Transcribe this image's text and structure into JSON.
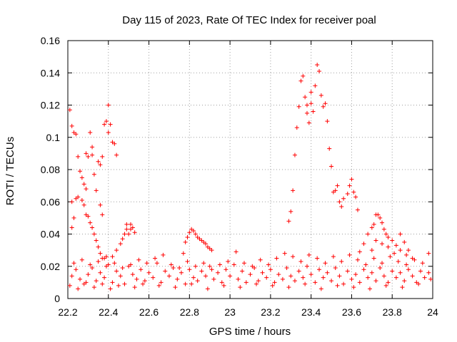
{
  "chart_data": {
    "type": "scatter",
    "title": "Day 115 of 2023, Rate Of TEC Index for receiver poal",
    "xlabel": "GPS time / hours",
    "ylabel": "ROTI / TECUs",
    "xlim": [
      22.2,
      24.0
    ],
    "ylim": [
      0,
      0.16
    ],
    "xticks": [
      "22.2",
      "22.4",
      "22.6",
      "22.8",
      "23",
      "23.2",
      "23.4",
      "23.6",
      "23.8",
      "24"
    ],
    "yticks": [
      "0",
      "0.02",
      "0.04",
      "0.06",
      "0.08",
      "0.1",
      "0.12",
      "0.14",
      "0.16"
    ],
    "grid": true,
    "marker": "+",
    "color": "#ff0000",
    "series": [
      {
        "name": "ROTI",
        "points": [
          [
            22.21,
            0.117
          ],
          [
            22.22,
            0.107
          ],
          [
            22.23,
            0.103
          ],
          [
            22.24,
            0.102
          ],
          [
            22.25,
            0.088
          ],
          [
            22.26,
            0.079
          ],
          [
            22.27,
            0.075
          ],
          [
            22.28,
            0.071
          ],
          [
            22.29,
            0.068
          ],
          [
            22.29,
            0.09
          ],
          [
            22.3,
            0.088
          ],
          [
            22.31,
            0.103
          ],
          [
            22.32,
            0.094
          ],
          [
            22.32,
            0.089
          ],
          [
            22.33,
            0.077
          ],
          [
            22.34,
            0.067
          ],
          [
            22.35,
            0.085
          ],
          [
            22.36,
            0.083
          ],
          [
            22.37,
            0.088
          ],
          [
            22.38,
            0.108
          ],
          [
            22.39,
            0.11
          ],
          [
            22.4,
            0.12
          ],
          [
            22.4,
            0.103
          ],
          [
            22.41,
            0.108
          ],
          [
            22.42,
            0.097
          ],
          [
            22.43,
            0.096
          ],
          [
            22.44,
            0.089
          ],
          [
            22.22,
            0.06
          ],
          [
            22.22,
            0.044
          ],
          [
            22.23,
            0.05
          ],
          [
            22.24,
            0.062
          ],
          [
            22.25,
            0.063
          ],
          [
            22.27,
            0.061
          ],
          [
            22.28,
            0.058
          ],
          [
            22.29,
            0.052
          ],
          [
            22.3,
            0.051
          ],
          [
            22.31,
            0.047
          ],
          [
            22.32,
            0.044
          ],
          [
            22.33,
            0.04
          ],
          [
            22.34,
            0.036
          ],
          [
            22.35,
            0.032
          ],
          [
            22.36,
            0.028
          ],
          [
            22.37,
            0.025
          ],
          [
            22.38,
            0.025
          ],
          [
            22.39,
            0.026
          ],
          [
            22.36,
            0.058
          ],
          [
            22.37,
            0.052
          ],
          [
            22.42,
            0.026
          ],
          [
            22.44,
            0.03
          ],
          [
            22.46,
            0.034
          ],
          [
            22.47,
            0.037
          ],
          [
            22.48,
            0.04
          ],
          [
            22.49,
            0.043
          ],
          [
            22.5,
            0.04
          ],
          [
            22.51,
            0.046
          ],
          [
            22.52,
            0.044
          ],
          [
            22.53,
            0.041
          ],
          [
            22.49,
            0.046
          ],
          [
            22.51,
            0.043
          ],
          [
            22.77,
            0.028
          ],
          [
            22.78,
            0.035
          ],
          [
            22.79,
            0.038
          ],
          [
            22.8,
            0.041
          ],
          [
            22.81,
            0.043
          ],
          [
            22.82,
            0.042
          ],
          [
            22.83,
            0.04
          ],
          [
            22.84,
            0.038
          ],
          [
            22.85,
            0.037
          ],
          [
            22.86,
            0.036
          ],
          [
            22.87,
            0.035
          ],
          [
            22.88,
            0.034
          ],
          [
            22.89,
            0.032
          ],
          [
            22.9,
            0.031
          ],
          [
            22.91,
            0.03
          ],
          [
            23.29,
            0.048
          ],
          [
            23.3,
            0.054
          ],
          [
            23.31,
            0.067
          ],
          [
            23.32,
            0.089
          ],
          [
            23.33,
            0.106
          ],
          [
            23.34,
            0.119
          ],
          [
            23.35,
            0.135
          ],
          [
            23.36,
            0.138
          ],
          [
            23.37,
            0.125
          ],
          [
            23.38,
            0.12
          ],
          [
            23.38,
            0.115
          ],
          [
            23.39,
            0.109
          ],
          [
            23.4,
            0.121
          ],
          [
            23.4,
            0.128
          ],
          [
            23.41,
            0.116
          ],
          [
            23.42,
            0.132
          ],
          [
            23.43,
            0.145
          ],
          [
            23.44,
            0.141
          ],
          [
            23.45,
            0.126
          ],
          [
            23.46,
            0.119
          ],
          [
            23.47,
            0.121
          ],
          [
            23.48,
            0.11
          ],
          [
            23.49,
            0.093
          ],
          [
            23.5,
            0.082
          ],
          [
            23.51,
            0.066
          ],
          [
            23.52,
            0.067
          ],
          [
            23.53,
            0.07
          ],
          [
            23.54,
            0.06
          ],
          [
            23.55,
            0.057
          ],
          [
            23.56,
            0.062
          ],
          [
            23.58,
            0.065
          ],
          [
            23.59,
            0.07
          ],
          [
            23.6,
            0.074
          ],
          [
            23.61,
            0.066
          ],
          [
            23.62,
            0.063
          ],
          [
            23.63,
            0.055
          ],
          [
            23.64,
            0.029
          ],
          [
            23.66,
            0.034
          ],
          [
            23.68,
            0.04
          ],
          [
            23.7,
            0.044
          ],
          [
            23.71,
            0.046
          ],
          [
            23.72,
            0.052
          ],
          [
            23.73,
            0.052
          ],
          [
            23.74,
            0.05
          ],
          [
            23.75,
            0.047
          ],
          [
            23.76,
            0.043
          ],
          [
            23.77,
            0.04
          ],
          [
            23.78,
            0.038
          ],
          [
            23.8,
            0.036
          ],
          [
            23.82,
            0.033
          ],
          [
            23.84,
            0.04
          ],
          [
            23.86,
            0.035
          ],
          [
            23.88,
            0.03
          ],
          [
            23.7,
            0.03
          ],
          [
            23.72,
            0.036
          ],
          [
            23.75,
            0.034
          ],
          [
            23.78,
            0.032
          ],
          [
            23.81,
            0.028
          ],
          [
            23.84,
            0.03
          ],
          [
            23.87,
            0.027
          ],
          [
            23.9,
            0.025
          ],
          [
            22.22,
            0.014
          ],
          [
            22.24,
            0.018
          ],
          [
            22.26,
            0.012
          ],
          [
            22.28,
            0.009
          ],
          [
            22.3,
            0.015
          ],
          [
            22.32,
            0.019
          ],
          [
            22.34,
            0.011
          ],
          [
            22.36,
            0.016
          ],
          [
            22.38,
            0.013
          ],
          [
            22.4,
            0.021
          ],
          [
            22.42,
            0.01
          ],
          [
            22.44,
            0.017
          ],
          [
            22.46,
            0.014
          ],
          [
            22.48,
            0.009
          ],
          [
            22.5,
            0.02
          ],
          [
            22.52,
            0.015
          ],
          [
            22.54,
            0.012
          ],
          [
            22.56,
            0.018
          ],
          [
            22.58,
            0.011
          ],
          [
            22.6,
            0.016
          ],
          [
            22.62,
            0.013
          ],
          [
            22.64,
            0.022
          ],
          [
            22.66,
            0.01
          ],
          [
            22.68,
            0.017
          ],
          [
            22.7,
            0.014
          ],
          [
            22.72,
            0.019
          ],
          [
            22.74,
            0.012
          ],
          [
            22.76,
            0.016
          ],
          [
            22.78,
            0.009
          ],
          [
            22.8,
            0.018
          ],
          [
            22.82,
            0.013
          ],
          [
            22.84,
            0.011
          ],
          [
            22.86,
            0.017
          ],
          [
            22.88,
            0.014
          ],
          [
            22.9,
            0.02
          ],
          [
            22.92,
            0.012
          ],
          [
            22.94,
            0.016
          ],
          [
            22.96,
            0.01
          ],
          [
            22.98,
            0.018
          ],
          [
            23.0,
            0.014
          ],
          [
            23.02,
            0.021
          ],
          [
            23.04,
            0.012
          ],
          [
            23.06,
            0.017
          ],
          [
            23.08,
            0.01
          ],
          [
            23.1,
            0.015
          ],
          [
            23.12,
            0.019
          ],
          [
            23.14,
            0.011
          ],
          [
            23.16,
            0.016
          ],
          [
            23.18,
            0.013
          ],
          [
            23.2,
            0.018
          ],
          [
            23.22,
            0.01
          ],
          [
            23.24,
            0.015
          ],
          [
            23.26,
            0.012
          ],
          [
            23.28,
            0.019
          ],
          [
            23.3,
            0.014
          ],
          [
            23.32,
            0.011
          ],
          [
            23.34,
            0.017
          ],
          [
            23.36,
            0.013
          ],
          [
            23.38,
            0.02
          ],
          [
            23.4,
            0.015
          ],
          [
            23.42,
            0.01
          ],
          [
            23.44,
            0.018
          ],
          [
            23.46,
            0.013
          ],
          [
            23.48,
            0.016
          ],
          [
            23.5,
            0.011
          ],
          [
            23.52,
            0.019
          ],
          [
            23.54,
            0.014
          ],
          [
            23.56,
            0.009
          ],
          [
            23.58,
            0.017
          ],
          [
            23.6,
            0.012
          ],
          [
            23.62,
            0.015
          ],
          [
            23.64,
            0.01
          ],
          [
            23.66,
            0.018
          ],
          [
            23.68,
            0.013
          ],
          [
            23.7,
            0.016
          ],
          [
            23.72,
            0.011
          ],
          [
            23.74,
            0.019
          ],
          [
            23.76,
            0.014
          ],
          [
            23.78,
            0.01
          ],
          [
            23.8,
            0.017
          ],
          [
            23.82,
            0.013
          ],
          [
            23.84,
            0.016
          ],
          [
            23.86,
            0.011
          ],
          [
            23.88,
            0.018
          ],
          [
            23.9,
            0.014
          ],
          [
            23.92,
            0.01
          ],
          [
            23.94,
            0.017
          ],
          [
            23.96,
            0.013
          ],
          [
            23.98,
            0.016
          ],
          [
            23.99,
            0.012
          ],
          [
            22.23,
            0.022
          ],
          [
            22.27,
            0.024
          ],
          [
            22.31,
            0.021
          ],
          [
            22.35,
            0.023
          ],
          [
            22.39,
            0.02
          ],
          [
            22.43,
            0.022
          ],
          [
            22.47,
            0.019
          ],
          [
            22.51,
            0.021
          ],
          [
            22.55,
            0.024
          ],
          [
            22.59,
            0.022
          ],
          [
            22.63,
            0.025
          ],
          [
            22.67,
            0.027
          ],
          [
            22.71,
            0.021
          ],
          [
            22.75,
            0.019
          ],
          [
            22.79,
            0.023
          ],
          [
            22.83,
            0.02
          ],
          [
            22.87,
            0.022
          ],
          [
            22.91,
            0.018
          ],
          [
            22.95,
            0.021
          ],
          [
            22.99,
            0.023
          ],
          [
            23.03,
            0.029
          ],
          [
            23.07,
            0.022
          ],
          [
            23.11,
            0.02
          ],
          [
            23.15,
            0.024
          ],
          [
            23.19,
            0.021
          ],
          [
            23.23,
            0.025
          ],
          [
            23.27,
            0.028
          ],
          [
            23.31,
            0.026
          ],
          [
            23.35,
            0.023
          ],
          [
            23.39,
            0.027
          ],
          [
            23.43,
            0.025
          ],
          [
            23.47,
            0.022
          ],
          [
            23.51,
            0.026
          ],
          [
            23.55,
            0.023
          ],
          [
            23.59,
            0.027
          ],
          [
            23.63,
            0.024
          ],
          [
            23.67,
            0.021
          ],
          [
            23.71,
            0.025
          ],
          [
            23.75,
            0.022
          ],
          [
            23.79,
            0.026
          ],
          [
            23.83,
            0.023
          ],
          [
            23.87,
            0.021
          ],
          [
            23.91,
            0.024
          ],
          [
            23.95,
            0.022
          ],
          [
            23.98,
            0.028
          ],
          [
            22.21,
            0.008
          ],
          [
            22.25,
            0.006
          ],
          [
            22.29,
            0.01
          ],
          [
            22.33,
            0.007
          ],
          [
            22.37,
            0.009
          ],
          [
            22.41,
            0.006
          ],
          [
            22.45,
            0.008
          ],
          [
            22.53,
            0.007
          ],
          [
            22.57,
            0.009
          ],
          [
            22.65,
            0.008
          ],
          [
            22.73,
            0.007
          ],
          [
            22.81,
            0.009
          ],
          [
            22.89,
            0.006
          ],
          [
            22.97,
            0.008
          ],
          [
            23.05,
            0.007
          ],
          [
            23.13,
            0.009
          ],
          [
            23.21,
            0.008
          ],
          [
            23.29,
            0.007
          ],
          [
            23.37,
            0.009
          ],
          [
            23.45,
            0.006
          ],
          [
            23.53,
            0.008
          ],
          [
            23.61,
            0.007
          ],
          [
            23.69,
            0.006
          ],
          [
            23.77,
            0.008
          ],
          [
            23.85,
            0.007
          ],
          [
            23.93,
            0.009
          ]
        ]
      }
    ]
  }
}
